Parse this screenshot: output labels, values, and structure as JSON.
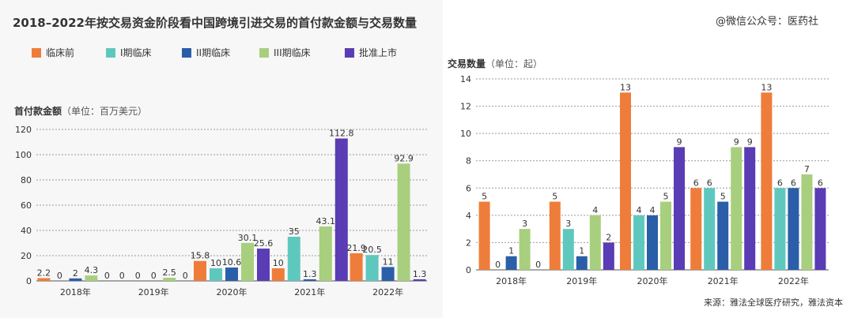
{
  "main_title": "2018–2022年按交易资金阶段看中国跨境引进交易的首付款金额与交易数量",
  "watermark": "@微信公众号：医药社",
  "source": "来源：雅法全球医疗研究，雅法资本",
  "colors": {
    "preclinical": "#ee7d3b",
    "phase1": "#5fc8be",
    "phase2": "#2a5ea8",
    "phase3": "#a8cf7e",
    "approved": "#5a3cb4",
    "grid": "#999999",
    "text": "#333333"
  },
  "legend": [
    {
      "label": "临床前",
      "color": "#ee7d3b"
    },
    {
      "label": "I期临床",
      "color": "#5fc8be"
    },
    {
      "label": "II期临床",
      "color": "#2a5ea8"
    },
    {
      "label": "III期临床",
      "color": "#a8cf7e"
    },
    {
      "label": "批准上市",
      "color": "#5a3cb4"
    }
  ],
  "left_subtitle": {
    "label": "首付款金额",
    "unit": "（单位：百万美元）"
  },
  "right_subtitle": {
    "label": "交易数量",
    "unit": "（单位：起）"
  },
  "chart_data": [
    {
      "type": "bar",
      "ylabel": "首付款金额（单位：百万美元）",
      "categories": [
        "2018年",
        "2019年",
        "2020年",
        "2021年",
        "2022年"
      ],
      "ylim": [
        0,
        120
      ],
      "yticks": [
        0,
        20,
        40,
        60,
        80,
        100,
        120
      ],
      "grid": true,
      "series": [
        {
          "name": "临床前",
          "values": [
            2.2,
            0,
            15.8,
            10,
            21.9
          ],
          "labels": [
            "2.2",
            "0",
            "15.8",
            "10",
            "21.9"
          ]
        },
        {
          "name": "I期临床",
          "values": [
            0,
            0,
            10,
            35,
            20.5
          ],
          "labels": [
            "0",
            "0",
            "10",
            "35",
            "20.5"
          ]
        },
        {
          "name": "II期临床",
          "values": [
            2,
            0,
            10.6,
            1.3,
            11
          ],
          "labels": [
            "2",
            "0",
            "10.6",
            "1.3",
            "11"
          ]
        },
        {
          "name": "III期临床",
          "values": [
            4.3,
            2.5,
            30.1,
            43.1,
            92.9
          ],
          "labels": [
            "4.3",
            "2.5",
            "30.1",
            "43.1",
            "92.9"
          ]
        },
        {
          "name": "批准上市",
          "values": [
            0,
            0,
            25.6,
            112.8,
            1.3
          ],
          "labels": [
            "0",
            "0",
            "25.6",
            "112.8",
            "1.3"
          ]
        }
      ]
    },
    {
      "type": "bar",
      "ylabel": "交易数量（单位：起）",
      "categories": [
        "2018年",
        "2019年",
        "2020年",
        "2021年",
        "2022年"
      ],
      "ylim": [
        0,
        14
      ],
      "yticks": [
        0,
        2,
        4,
        6,
        8,
        10,
        12,
        14
      ],
      "grid": true,
      "series": [
        {
          "name": "临床前",
          "values": [
            5,
            5,
            13,
            6,
            13
          ],
          "labels": [
            "5",
            "5",
            "13",
            "6",
            "13"
          ]
        },
        {
          "name": "I期临床",
          "values": [
            0,
            3,
            4,
            6,
            6
          ],
          "labels": [
            "0",
            "3",
            "4",
            "6",
            "6"
          ]
        },
        {
          "name": "II期临床",
          "values": [
            1,
            1,
            4,
            5,
            6
          ],
          "labels": [
            "1",
            "1",
            "4",
            "5",
            "6"
          ]
        },
        {
          "name": "III期临床",
          "values": [
            3,
            4,
            5,
            9,
            7
          ],
          "labels": [
            "3",
            "4",
            "5",
            "9",
            "7"
          ]
        },
        {
          "name": "批准上市",
          "values": [
            0,
            2,
            9,
            9,
            6
          ],
          "labels": [
            "0",
            "2",
            "9",
            "9",
            "6"
          ]
        }
      ]
    }
  ]
}
